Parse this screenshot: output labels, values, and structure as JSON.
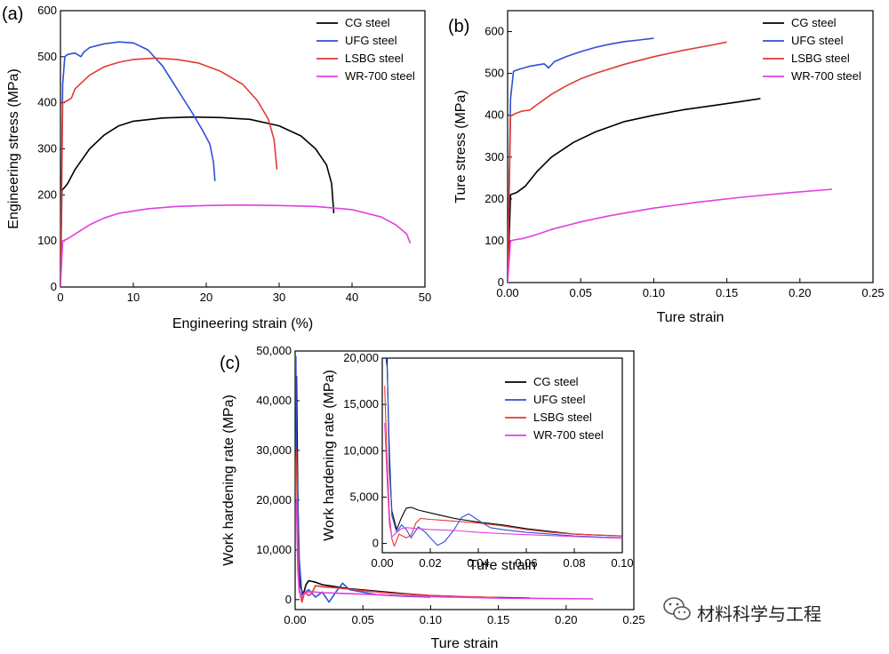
{
  "colors": {
    "cg": "#000000",
    "ufg": "#2e4fd6",
    "lsbg": "#e03a33",
    "wr700": "#e040e0"
  },
  "watermark": {
    "text": "材料科学与工程",
    "icon": "wechat-icon"
  },
  "chart_data": [
    {
      "type": "line",
      "panel_label": "(a)",
      "xlabel": "Engineering strain (%)",
      "ylabel": "Engineering stress (MPa)",
      "xlim": [
        0,
        50
      ],
      "ylim": [
        0,
        600
      ],
      "xticks": [
        0,
        10,
        20,
        30,
        40,
        50
      ],
      "yticks": [
        0,
        100,
        200,
        300,
        400,
        500,
        600
      ],
      "xtick_labels": [
        "0",
        "10",
        "20",
        "30",
        "40",
        "50"
      ],
      "ytick_labels": [
        "0",
        "100",
        "200",
        "300",
        "400",
        "500",
        "600"
      ],
      "legend_position": "top-right",
      "series": [
        {
          "name": "CG steel",
          "color_key": "cg",
          "x": [
            0,
            0.2,
            0.5,
            1,
            2,
            4,
            6,
            8,
            10,
            14,
            18,
            22,
            26,
            30,
            33,
            35,
            36.5,
            37.2,
            37.5
          ],
          "y": [
            0,
            210,
            215,
            225,
            255,
            300,
            330,
            350,
            360,
            367,
            369,
            368,
            364,
            350,
            328,
            300,
            265,
            225,
            160
          ]
        },
        {
          "name": "UFG steel",
          "color_key": "ufg",
          "x": [
            0,
            0.3,
            0.6,
            1,
            2,
            2.8,
            3.2,
            4,
            6,
            8,
            10,
            12,
            14,
            16,
            18,
            19.5,
            20.5,
            21,
            21.2
          ],
          "y": [
            0,
            440,
            500,
            505,
            508,
            500,
            510,
            520,
            528,
            532,
            530,
            515,
            480,
            430,
            380,
            340,
            310,
            270,
            230
          ]
        },
        {
          "name": "LSBG steel",
          "color_key": "lsbg",
          "x": [
            0,
            0.3,
            1,
            1.5,
            2,
            4,
            6,
            8,
            10,
            13,
            16,
            19,
            22,
            25,
            27,
            28.5,
            29.3,
            29.7
          ],
          "y": [
            0,
            400,
            405,
            410,
            430,
            460,
            478,
            488,
            494,
            497,
            494,
            486,
            468,
            440,
            405,
            365,
            320,
            255
          ]
        },
        {
          "name": "WR-700 steel",
          "color_key": "wr700",
          "x": [
            0,
            0.3,
            1,
            2,
            4,
            6,
            8,
            12,
            16,
            20,
            25,
            30,
            35,
            40,
            44,
            46,
            47.5,
            48
          ],
          "y": [
            0,
            100,
            105,
            115,
            135,
            150,
            160,
            170,
            175,
            177,
            178,
            177,
            175,
            168,
            152,
            135,
            115,
            95
          ]
        }
      ]
    },
    {
      "type": "line",
      "panel_label": "(b)",
      "xlabel": "Ture strain",
      "ylabel": "Ture stress (MPa)",
      "xlim": [
        0,
        0.25
      ],
      "ylim": [
        0,
        650
      ],
      "xticks": [
        0,
        0.05,
        0.1,
        0.15,
        0.2,
        0.25
      ],
      "yticks": [
        0,
        100,
        200,
        300,
        400,
        500,
        600
      ],
      "xtick_labels": [
        "0.00",
        "0.05",
        "0.10",
        "0.15",
        "0.20",
        "0.25"
      ],
      "ytick_labels": [
        "0",
        "100",
        "200",
        "300",
        "400",
        "500",
        "600"
      ],
      "legend_position": "top-right",
      "series": [
        {
          "name": "CG steel",
          "color_key": "cg",
          "x": [
            0,
            0.002,
            0.006,
            0.012,
            0.02,
            0.03,
            0.045,
            0.06,
            0.08,
            0.1,
            0.12,
            0.14,
            0.16,
            0.173
          ],
          "y": [
            0,
            210,
            215,
            230,
            265,
            300,
            335,
            360,
            385,
            400,
            413,
            423,
            433,
            440
          ]
        },
        {
          "name": "UFG steel",
          "color_key": "ufg",
          "x": [
            0,
            0.002,
            0.004,
            0.008,
            0.015,
            0.025,
            0.028,
            0.032,
            0.04,
            0.05,
            0.06,
            0.07,
            0.08,
            0.09,
            0.1
          ],
          "y": [
            0,
            440,
            505,
            510,
            517,
            523,
            513,
            528,
            540,
            552,
            562,
            570,
            576,
            580,
            584
          ]
        },
        {
          "name": "LSBG steel",
          "color_key": "lsbg",
          "x": [
            0,
            0.002,
            0.006,
            0.01,
            0.015,
            0.02,
            0.03,
            0.04,
            0.05,
            0.06,
            0.08,
            0.1,
            0.12,
            0.14,
            0.15
          ],
          "y": [
            0,
            398,
            405,
            410,
            412,
            425,
            450,
            470,
            487,
            500,
            522,
            540,
            555,
            568,
            575
          ]
        },
        {
          "name": "WR-700 steel",
          "color_key": "wr700",
          "x": [
            0,
            0.002,
            0.006,
            0.01,
            0.02,
            0.03,
            0.05,
            0.07,
            0.1,
            0.13,
            0.16,
            0.19,
            0.222
          ],
          "y": [
            0,
            100,
            103,
            105,
            115,
            127,
            145,
            160,
            178,
            192,
            204,
            214,
            223
          ]
        }
      ]
    },
    {
      "type": "line",
      "panel_label": "(c)",
      "xlabel": "Ture strain",
      "ylabel": "Work hardening rate (MPa)",
      "xlim": [
        0,
        0.25
      ],
      "ylim": [
        -2000,
        50000
      ],
      "xticks": [
        0,
        0.05,
        0.1,
        0.15,
        0.2,
        0.25
      ],
      "yticks": [
        0,
        10000,
        20000,
        30000,
        40000,
        50000
      ],
      "xtick_labels": [
        "0.00",
        "0.05",
        "0.10",
        "0.15",
        "0.20",
        "0.25"
      ],
      "ytick_labels": [
        "0",
        "10,000",
        "20,000",
        "30,000",
        "40,000",
        "50,000"
      ],
      "series": [
        {
          "name": "CG steel",
          "color_key": "cg",
          "x": [
            0.001,
            0.002,
            0.003,
            0.004,
            0.006,
            0.008,
            0.01,
            0.015,
            0.02,
            0.03,
            0.04,
            0.06,
            0.08,
            0.1,
            0.13,
            0.173
          ],
          "y": [
            45000,
            20000,
            5000,
            2500,
            1000,
            3000,
            3800,
            3500,
            3000,
            2600,
            2200,
            1700,
            1200,
            800,
            500,
            300
          ]
        },
        {
          "name": "UFG steel",
          "color_key": "ufg",
          "x": [
            0.0005,
            0.001,
            0.002,
            0.003,
            0.005,
            0.01,
            0.015,
            0.02,
            0.025,
            0.03,
            0.035,
            0.04,
            0.05,
            0.06,
            0.08,
            0.1
          ],
          "y": [
            49000,
            30000,
            20000,
            8000,
            1000,
            2000,
            500,
            1500,
            -500,
            1500,
            3300,
            2000,
            1500,
            1000,
            700,
            500
          ]
        },
        {
          "name": "LSBG steel",
          "color_key": "lsbg",
          "x": [
            0.001,
            0.002,
            0.003,
            0.005,
            0.007,
            0.01,
            0.012,
            0.015,
            0.02,
            0.03,
            0.05,
            0.07,
            0.1,
            0.15
          ],
          "y": [
            30000,
            10000,
            2000,
            -500,
            1500,
            800,
            1200,
            2800,
            2600,
            2400,
            1800,
            1300,
            800,
            400
          ]
        },
        {
          "name": "WR-700 steel",
          "color_key": "wr700",
          "x": [
            0.001,
            0.002,
            0.003,
            0.005,
            0.008,
            0.012,
            0.02,
            0.04,
            0.06,
            0.1,
            0.15,
            0.22
          ],
          "y": [
            20000,
            6000,
            1500,
            500,
            1500,
            1600,
            1400,
            1200,
            1000,
            600,
            300,
            150
          ]
        }
      ]
    },
    {
      "type": "line",
      "panel_label": "",
      "xlabel": "Ture strain",
      "ylabel": "Work hardening rate (MPa)",
      "xlim": [
        0,
        0.1
      ],
      "ylim": [
        -1000,
        20000
      ],
      "xticks": [
        0,
        0.02,
        0.04,
        0.06,
        0.08,
        0.1
      ],
      "yticks": [
        0,
        5000,
        10000,
        15000,
        20000
      ],
      "xtick_labels": [
        "0.00",
        "0.02",
        "0.04",
        "0.06",
        "0.08",
        "0.10"
      ],
      "ytick_labels": [
        "0",
        "5,000",
        "10,000",
        "15,000",
        "20,000"
      ],
      "legend_position": "top-right",
      "series": [
        {
          "name": "CG steel",
          "color_key": "cg",
          "x": [
            0.002,
            0.003,
            0.004,
            0.005,
            0.006,
            0.008,
            0.01,
            0.012,
            0.015,
            0.02,
            0.025,
            0.03,
            0.035,
            0.04,
            0.05,
            0.06,
            0.07,
            0.08,
            0.09,
            0.1
          ],
          "y": [
            20000,
            8000,
            3500,
            2500,
            1500,
            2800,
            3800,
            3900,
            3600,
            3300,
            3000,
            2700,
            2500,
            2300,
            2000,
            1600,
            1300,
            1000,
            900,
            800
          ]
        },
        {
          "name": "UFG steel",
          "color_key": "ufg",
          "x": [
            0.0015,
            0.002,
            0.003,
            0.004,
            0.006,
            0.008,
            0.01,
            0.012,
            0.015,
            0.018,
            0.02,
            0.023,
            0.026,
            0.03,
            0.033,
            0.036,
            0.04,
            0.045,
            0.05,
            0.06,
            0.07,
            0.08,
            0.09,
            0.1
          ],
          "y": [
            20000,
            19000,
            10000,
            3000,
            1200,
            2000,
            1500,
            600,
            1800,
            1200,
            600,
            -200,
            200,
            1500,
            2800,
            3200,
            2500,
            1700,
            1500,
            1200,
            1000,
            800,
            700,
            600
          ]
        },
        {
          "name": "LSBG steel",
          "color_key": "lsbg",
          "x": [
            0.001,
            0.002,
            0.003,
            0.004,
            0.005,
            0.007,
            0.01,
            0.012,
            0.014,
            0.016,
            0.02,
            0.03,
            0.04,
            0.05,
            0.06,
            0.07,
            0.08,
            0.09,
            0.1
          ],
          "y": [
            17000,
            9000,
            3000,
            500,
            -300,
            1000,
            600,
            900,
            2200,
            2700,
            2600,
            2400,
            2200,
            1900,
            1500,
            1200,
            1000,
            900,
            800
          ]
        },
        {
          "name": "WR-700 steel",
          "color_key": "wr700",
          "x": [
            0.001,
            0.002,
            0.003,
            0.004,
            0.006,
            0.008,
            0.01,
            0.015,
            0.02,
            0.03,
            0.04,
            0.05,
            0.06,
            0.07,
            0.08,
            0.09,
            0.1
          ],
          "y": [
            13000,
            7000,
            2000,
            700,
            1200,
            1600,
            1700,
            1600,
            1500,
            1400,
            1200,
            1050,
            950,
            850,
            750,
            650,
            550
          ]
        }
      ]
    }
  ]
}
